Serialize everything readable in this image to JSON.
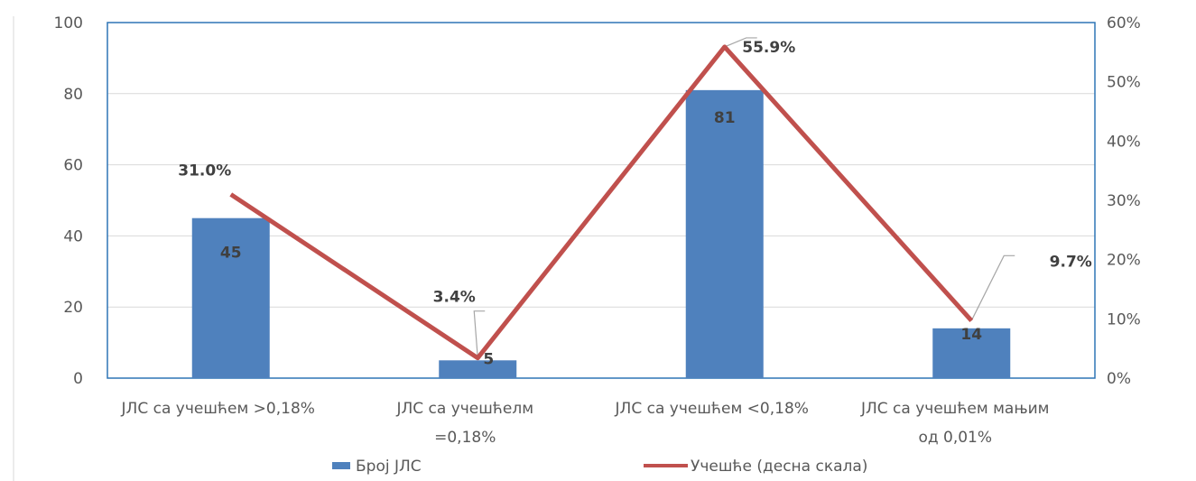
{
  "chart_data": {
    "type": "bar",
    "title": "",
    "categories": [
      [
        "ЈЛС са учешћем >0,18%"
      ],
      [
        "ЈЛС са учешћелм",
        "=0,18%"
      ],
      [
        "ЈЛС са учешћем <0,18%"
      ],
      [
        "ЈЛС са учешћем мањим",
        "од 0,01%"
      ]
    ],
    "series": [
      {
        "name": "Број ЈЛС",
        "type": "bar",
        "axis": "left",
        "color": "#4f81bd",
        "values": [
          45,
          5,
          81,
          14
        ],
        "labels": [
          "45",
          "5",
          "81",
          "14"
        ]
      },
      {
        "name": "Учешће (десна скала)",
        "type": "line",
        "axis": "right",
        "color": "#c0504d",
        "values": [
          31.0,
          3.4,
          55.9,
          9.7
        ],
        "labels": [
          "31.0%",
          "3.4%",
          "55.9%",
          "9.7%"
        ]
      }
    ],
    "y_left": {
      "min": 0,
      "max": 100,
      "ticks": [
        "0",
        "20",
        "40",
        "60",
        "80",
        "100"
      ]
    },
    "y_right": {
      "min": 0,
      "max": 60,
      "ticks": [
        "0%",
        "10%",
        "20%",
        "30%",
        "40%",
        "50%",
        "60%"
      ]
    },
    "grid": true,
    "legend": "bottom"
  }
}
